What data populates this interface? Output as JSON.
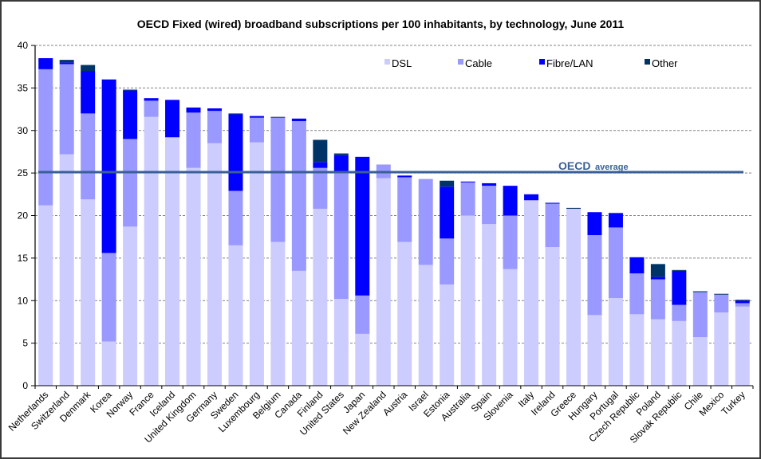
{
  "chart_data": {
    "type": "bar",
    "stacked": true,
    "title": "OECD Fixed (wired) broadband subscriptions per 100 inhabitants, by technology, June 2011",
    "xlabel": "",
    "ylabel": "",
    "ylim": [
      0,
      40
    ],
    "yticks": [
      0,
      5,
      10,
      15,
      20,
      25,
      30,
      35,
      40
    ],
    "grid": true,
    "legend_position": "top-right",
    "categories": [
      "Netherlands",
      "Switzerland",
      "Denmark",
      "Korea",
      "Norway",
      "France",
      "Iceland",
      "United Kingdom",
      "Germany",
      "Sweden",
      "Luxembourg",
      "Belgium",
      "Canada",
      "Finland",
      "United States",
      "Japan",
      "New Zealand",
      "Austria",
      "Israel",
      "Estonia",
      "Australia",
      "Spain",
      "Slovenia",
      "Italy",
      "Ireland",
      "Greece",
      "Hungary",
      "Portugal",
      "Czech Republic",
      "Poland",
      "Slovak Republic",
      "Chile",
      "Mexico",
      "Turkey"
    ],
    "series": [
      {
        "name": "DSL",
        "color": "#ccccff",
        "values": [
          21.2,
          27.2,
          21.9,
          5.2,
          18.7,
          31.6,
          29.2,
          25.6,
          28.5,
          16.5,
          28.6,
          16.9,
          13.5,
          20.8,
          10.2,
          6.1,
          24.4,
          16.9,
          14.2,
          11.9,
          20.0,
          19.0,
          13.7,
          21.8,
          16.3,
          20.8,
          8.3,
          10.3,
          8.4,
          7.8,
          7.6,
          5.7,
          8.6,
          9.3
        ]
      },
      {
        "name": "Cable",
        "color": "#9999ff",
        "values": [
          16.0,
          10.6,
          10.1,
          10.4,
          10.3,
          1.9,
          0.0,
          6.5,
          3.8,
          6.4,
          2.9,
          14.6,
          17.6,
          4.8,
          15.0,
          4.5,
          1.6,
          7.6,
          10.1,
          5.4,
          3.9,
          4.5,
          6.3,
          0.0,
          5.1,
          0.0,
          9.4,
          8.3,
          4.8,
          4.7,
          1.9,
          5.3,
          2.1,
          0.4
        ]
      },
      {
        "name": "Fibre/LAN",
        "color": "#0000ff",
        "values": [
          1.3,
          0.2,
          5.0,
          20.4,
          5.7,
          0.3,
          4.4,
          0.6,
          0.3,
          9.0,
          0.2,
          0.0,
          0.3,
          0.7,
          1.9,
          16.3,
          0.0,
          0.2,
          0.0,
          6.1,
          0.1,
          0.3,
          3.5,
          0.7,
          0.1,
          0.0,
          2.7,
          1.7,
          1.9,
          0.3,
          4.0,
          0.0,
          0.0,
          0.3
        ]
      },
      {
        "name": "Other",
        "color": "#003366",
        "values": [
          0.0,
          0.3,
          0.7,
          0.0,
          0.1,
          0.0,
          0.0,
          0.0,
          0.0,
          0.1,
          0.0,
          0.1,
          0.0,
          2.6,
          0.2,
          0.0,
          0.0,
          0.0,
          0.0,
          0.7,
          0.0,
          0.0,
          0.0,
          0.0,
          0.0,
          0.1,
          0.0,
          0.0,
          0.0,
          1.5,
          0.1,
          0.1,
          0.1,
          0.1
        ]
      }
    ],
    "reference_line": {
      "label_main": "OECD",
      "label_sub": "average",
      "value": 25.1,
      "color": "#3a5f96"
    }
  }
}
